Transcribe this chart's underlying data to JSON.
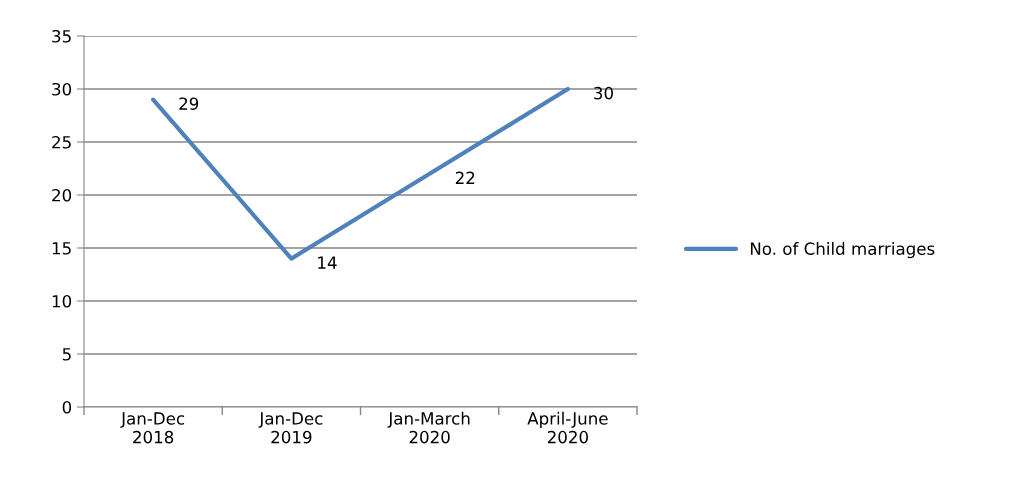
{
  "chart_data": {
    "type": "line",
    "categories": [
      "Jan-Dec\n2018",
      "Jan-Dec\n2019",
      "Jan-March\n2020",
      "April-June\n2020"
    ],
    "series": [
      {
        "name": "No. of Child marriages",
        "color": "#4f81bd",
        "values": [
          29,
          14,
          22,
          30
        ]
      }
    ],
    "ylim": [
      0,
      35
    ],
    "yticks": [
      0,
      5,
      10,
      15,
      20,
      25,
      30,
      35
    ],
    "grid": "y",
    "legend": "right",
    "data_labels": true,
    "marker": "none",
    "line_style": "solid"
  }
}
